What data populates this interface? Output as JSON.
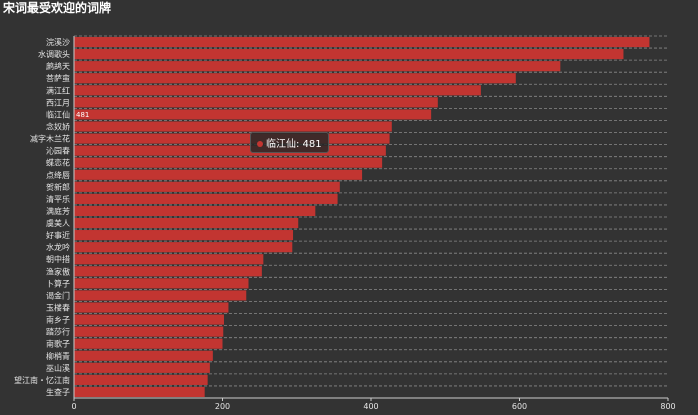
{
  "chart_data": {
    "type": "bar",
    "orientation": "horizontal",
    "title": "宋词最受欢迎的词牌",
    "categories": [
      "浣溪沙",
      "水调歌头",
      "鹧鸪天",
      "菩萨蛮",
      "满江红",
      "西江月",
      "临江仙",
      "念奴娇",
      "减字木兰花",
      "沁园春",
      "蝶恋花",
      "点绛唇",
      "贺新郎",
      "清平乐",
      "满庭芳",
      "虞美人",
      "好事近",
      "水龙吟",
      "朝中措",
      "渔家傲",
      "卜算子",
      "谒金门",
      "玉楼春",
      "南乡子",
      "踏莎行",
      "南歌子",
      "柳梢青",
      "巫山溪",
      "望江南・忆江南",
      "生查子"
    ],
    "values": [
      775,
      740,
      655,
      595,
      548,
      490,
      481,
      428,
      425,
      420,
      415,
      388,
      358,
      355,
      325,
      302,
      295,
      294,
      255,
      253,
      235,
      232,
      208,
      202,
      201,
      200,
      187,
      183,
      180,
      176
    ],
    "xlim": [
      0,
      800
    ],
    "xticks": [
      "0",
      "200",
      "400",
      "600",
      "800"
    ],
    "grid": true,
    "accent_color": "#c23531",
    "data_label": {
      "category": "临江仙",
      "value": "481"
    },
    "tooltip": {
      "category": "临江仙",
      "value": "481",
      "text": "临江仙: 481"
    }
  }
}
